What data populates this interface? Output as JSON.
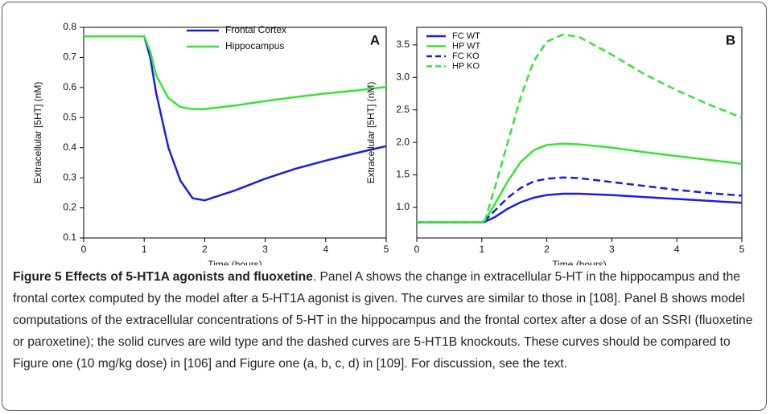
{
  "chart_data": [
    {
      "type": "line",
      "annotation": "A",
      "x_label": "Time (hours)",
      "y_label": "Extracellular [5HT] (nM)",
      "x": [
        0,
        0.5,
        1,
        1.1,
        1.2,
        1.4,
        1.6,
        1.8,
        2,
        2.5,
        3,
        3.5,
        4,
        4.5,
        5
      ],
      "series": [
        {
          "name": "Frontal Cortex",
          "color": "#1c1ce6",
          "dash": false,
          "values": [
            0.77,
            0.77,
            0.77,
            0.7,
            0.58,
            0.4,
            0.29,
            0.232,
            0.225,
            0.258,
            0.297,
            0.33,
            0.357,
            0.382,
            0.405
          ]
        },
        {
          "name": "Hippocampus",
          "color": "#33e633",
          "dash": false,
          "values": [
            0.77,
            0.77,
            0.77,
            0.72,
            0.64,
            0.565,
            0.535,
            0.528,
            0.528,
            0.54,
            0.555,
            0.568,
            0.58,
            0.59,
            0.602
          ]
        }
      ],
      "xlim": [
        0,
        5
      ],
      "xticks": [
        0,
        1,
        2,
        3,
        4,
        5
      ],
      "ylim": [
        0.1,
        0.8
      ],
      "yticks": [
        0.1,
        0.2,
        0.3,
        0.4,
        0.5,
        0.6,
        0.7,
        0.8
      ],
      "legend": "upper center"
    },
    {
      "type": "line",
      "annotation": "B",
      "x_label": "Time (hours)",
      "y_label": "Extracellular [5HT] (nM)",
      "x": [
        0,
        0.5,
        1,
        1.05,
        1.2,
        1.4,
        1.6,
        1.8,
        2,
        2.25,
        2.5,
        3,
        3.5,
        4,
        4.5,
        5
      ],
      "series": [
        {
          "name": "FC WT",
          "color": "#1c1ce6",
          "dash": false,
          "values": [
            0.77,
            0.77,
            0.77,
            0.78,
            0.85,
            0.98,
            1.08,
            1.15,
            1.19,
            1.21,
            1.21,
            1.19,
            1.16,
            1.13,
            1.1,
            1.07
          ]
        },
        {
          "name": "HP WT",
          "color": "#33e633",
          "dash": false,
          "values": [
            0.77,
            0.77,
            0.77,
            0.8,
            1.05,
            1.4,
            1.7,
            1.88,
            1.96,
            1.98,
            1.97,
            1.92,
            1.85,
            1.79,
            1.73,
            1.67
          ]
        },
        {
          "name": "FC KO",
          "color": "#1c1ce6",
          "dash": true,
          "values": [
            0.77,
            0.77,
            0.77,
            0.8,
            0.95,
            1.15,
            1.3,
            1.4,
            1.44,
            1.46,
            1.45,
            1.39,
            1.33,
            1.27,
            1.22,
            1.18
          ]
        },
        {
          "name": "HP KO",
          "color": "#33e633",
          "dash": true,
          "values": [
            0.77,
            0.77,
            0.77,
            0.8,
            1.3,
            2.0,
            2.7,
            3.25,
            3.55,
            3.66,
            3.62,
            3.35,
            3.05,
            2.8,
            2.58,
            2.38
          ]
        }
      ],
      "xlim": [
        0,
        5
      ],
      "xticks": [
        0,
        1,
        2,
        3,
        4,
        5
      ],
      "ylim": [
        0.53,
        3.77
      ],
      "yticks": [
        {
          "value": 1,
          "label": "1.0"
        },
        1.5,
        {
          "value": 2,
          "label": "2.0"
        },
        2.5,
        {
          "value": 3,
          "label": "3.0"
        },
        3.5
      ],
      "legend": "upper left"
    }
  ],
  "caption": {
    "label": "Figure 5 Effects of 5-HT1A agonists and fluoxetine",
    "text": ". Panel A shows the change in extracellular 5-HT in the hippocampus and the frontal cortex computed by the model after a 5-HT1A agonist is given. The curves are similar to those in [108]. Panel B shows model computations of the extracellular concentrations of 5-HT in the hippocampus and the frontal cortex after a dose of an SSRI (fluoxetine or paroxetine); the solid curves are wild type and the dashed curves are 5-HT1B knockouts. These curves should be compared to Figure one (10 mg/kg dose) in [106] and Figure one (a, b, c, d) in [109]. For discussion, see the text."
  }
}
